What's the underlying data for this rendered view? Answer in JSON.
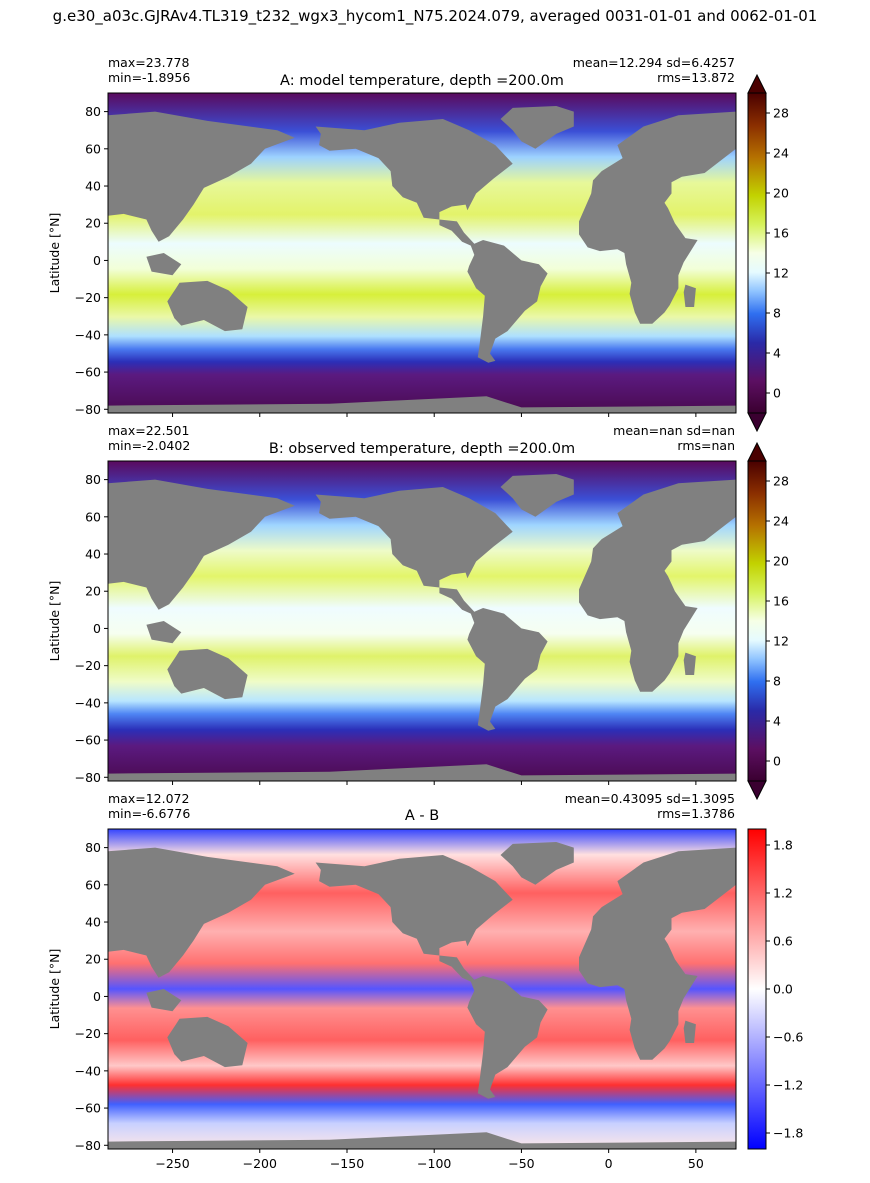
{
  "suptitle": "g.e30_a03c.GJRAv4.TL319_t232_wgx3_hycom1_N75.2024.079, averaged 0031-01-01 and 0062-01-01",
  "colors": {
    "land": "#808080",
    "frame": "#000000"
  },
  "chart_data": [
    {
      "type": "heatmap",
      "title": "A: model temperature, depth =200.0m",
      "ylabel": "Latitude [°N]",
      "stats_left": [
        "max=23.778",
        "min=-1.8956"
      ],
      "stats_right": [
        "mean=12.294 sd=6.4257",
        "rms=13.872"
      ],
      "xlim": [
        -287,
        73
      ],
      "ylim": [
        -82,
        90
      ],
      "yticks": [
        -80,
        -60,
        -40,
        -20,
        0,
        20,
        40,
        60,
        80
      ],
      "xticks_labeled": false,
      "colorbar": {
        "range": [
          -2,
          30
        ],
        "ticks": [
          "0",
          "4",
          "8",
          "12",
          "16",
          "20",
          "24",
          "28"
        ],
        "tick_values": [
          0,
          4,
          8,
          12,
          16,
          20,
          24,
          28
        ],
        "extend": "both",
        "colormap": "dunnet-temperature"
      }
    },
    {
      "type": "heatmap",
      "title": "B: observed temperature, depth =200.0m",
      "ylabel": "Latitude [°N]",
      "stats_left": [
        "max=22.501",
        "min=-2.0402"
      ],
      "stats_right": [
        "mean=nan sd=nan",
        "rms=nan"
      ],
      "xlim": [
        -287,
        73
      ],
      "ylim": [
        -82,
        90
      ],
      "yticks": [
        -80,
        -60,
        -40,
        -20,
        0,
        20,
        40,
        60,
        80
      ],
      "xticks_labeled": false,
      "colorbar": {
        "range": [
          -2,
          30
        ],
        "ticks": [
          "0",
          "4",
          "8",
          "12",
          "16",
          "20",
          "24",
          "28"
        ],
        "tick_values": [
          0,
          4,
          8,
          12,
          16,
          20,
          24,
          28
        ],
        "extend": "both",
        "colormap": "dunnet-temperature"
      }
    },
    {
      "type": "heatmap",
      "title": "A - B",
      "ylabel": "Latitude [°N]",
      "stats_left": [
        "max=12.072",
        "min=-6.6776"
      ],
      "stats_right": [
        "mean=0.43095 sd=1.3095",
        "rms=1.3786"
      ],
      "xlim": [
        -287,
        73
      ],
      "ylim": [
        -82,
        90
      ],
      "yticks": [
        -80,
        -60,
        -40,
        -20,
        0,
        20,
        40,
        60,
        80
      ],
      "xticks": [
        -250,
        -200,
        -150,
        -100,
        -50,
        0,
        50
      ],
      "xtick_labels": [
        "−250",
        "−200",
        "−150",
        "−100",
        "−50",
        "0",
        "50"
      ],
      "xticks_labeled": true,
      "colorbar": {
        "range": [
          -2,
          2
        ],
        "ticks": [
          "−1.8",
          "−1.2",
          "−0.6",
          "0.0",
          "0.6",
          "1.2",
          "1.8"
        ],
        "tick_values": [
          -1.8,
          -1.2,
          -0.6,
          0.0,
          0.6,
          1.2,
          1.8
        ],
        "extend": "neither",
        "colormap": "bwr"
      }
    }
  ]
}
